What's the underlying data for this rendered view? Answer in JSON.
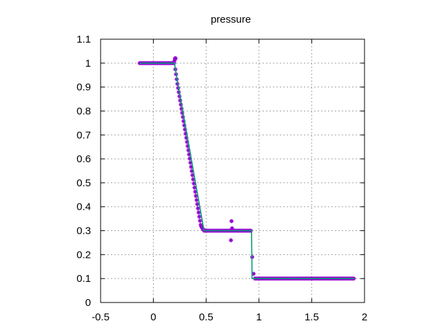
{
  "chart_data": {
    "type": "scatter",
    "title": "pressure",
    "xlabel": "",
    "ylabel": "",
    "xlim": [
      -0.5,
      2
    ],
    "ylim": [
      0,
      1.1
    ],
    "xticks": [
      "-0.5",
      "0",
      "0.5",
      "1",
      "1.5",
      "2"
    ],
    "xtick_values": [
      -0.5,
      0,
      0.5,
      1,
      1.5,
      2
    ],
    "yticks": [
      "0",
      "0.1",
      "0.2",
      "0.3",
      "0.4",
      "0.5",
      "0.6",
      "0.7",
      "0.8",
      "0.9",
      "1",
      "1.1"
    ],
    "ytick_values": [
      0,
      0.1,
      0.2,
      0.3,
      0.4,
      0.5,
      0.6,
      0.7,
      0.8,
      0.9,
      1.0,
      1.1
    ],
    "grid": true,
    "legend": "none",
    "series": [
      {
        "kind": "points",
        "color": "#9400d3",
        "marker": "star",
        "x_start": -0.13,
        "x_end": 1.9,
        "x_step": 0.013,
        "points": [
          [
            0.2,
            1.01
          ],
          [
            0.205,
            1.02
          ],
          [
            0.21,
            1.02
          ],
          [
            0.74,
            0.34
          ],
          [
            0.735,
            0.26
          ],
          [
            0.745,
            0.31
          ]
        ],
        "anchors": [
          [
            -0.13,
            1.0
          ],
          [
            0.2,
            1.0
          ],
          [
            0.225,
            0.92
          ],
          [
            0.45,
            0.32
          ],
          [
            0.48,
            0.3
          ],
          [
            0.92,
            0.3
          ],
          [
            0.925,
            0.3
          ],
          [
            0.94,
            0.15
          ],
          [
            0.955,
            0.1
          ],
          [
            1.9,
            0.1
          ]
        ]
      },
      {
        "kind": "line",
        "color": "#009e73",
        "points": [
          [
            -0.13,
            1.0
          ],
          [
            0.2,
            1.0
          ],
          [
            0.21,
            0.97
          ],
          [
            0.48,
            0.3
          ],
          [
            0.93,
            0.3
          ],
          [
            0.935,
            0.1
          ],
          [
            1.9,
            0.1
          ]
        ]
      }
    ]
  }
}
